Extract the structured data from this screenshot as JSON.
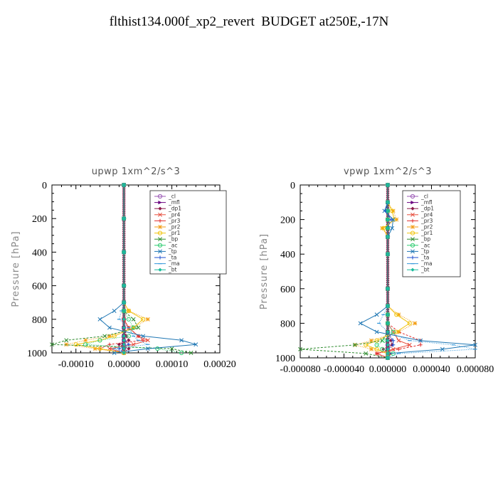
{
  "title": "flthist134.000f_xp2_revert  BUDGET at250E,-17N",
  "legend_labels": [
    "_cl",
    "_mfl",
    "_dp1",
    "_pr4",
    "_pr3",
    "_pr2",
    "_pr1",
    "_bp",
    "_ac",
    "_tp",
    "_ta",
    "_ma",
    "_bt"
  ],
  "colors": {
    "_cl": "#9b59b6",
    "_mfl": "#6a0080",
    "_dp1": "#8b1a4a",
    "_pr4": "#e74c3c",
    "_pr3": "#e03030",
    "_pr2": "#f39c12",
    "_pr1": "#f1c40f",
    "_bp": "#2e8b2e",
    "_ac": "#2ecc71",
    "_tp": "#1f77b4",
    "_ta": "#1f4fd0",
    "_ma": "#3498db",
    "_bt": "#1abc9c"
  },
  "chart_data": [
    {
      "type": "line",
      "title": "upwp   1xm^2/s^3",
      "ylabel": "Pressure  [hPa]",
      "xlim": [
        -0.00015,
        0.0002
      ],
      "ylim": [
        1000,
        0
      ],
      "xticks": [
        -0.0001,
        0.0,
        0.0001,
        0.0002
      ],
      "xtick_labels": [
        "-0.00010",
        "0.00000",
        "0.00010",
        "0.00020"
      ],
      "yticks": [
        0,
        200,
        400,
        600,
        800,
        1000
      ],
      "ytick_labels": [
        "0",
        "200",
        "400",
        "600",
        "800",
        "1000"
      ],
      "legend_position": "top-right",
      "pressure": [
        0,
        200,
        400,
        600,
        700,
        750,
        800,
        850,
        900,
        925,
        950,
        975,
        1000
      ],
      "series": [
        {
          "name": "_cl",
          "values": [
            0,
            0,
            0,
            0,
            0,
            0,
            0,
            0,
            0,
            0,
            0,
            0,
            0
          ]
        },
        {
          "name": "_mfl",
          "values": [
            0,
            0,
            0,
            0,
            0,
            0,
            0,
            0,
            0,
            0,
            0,
            0,
            0
          ]
        },
        {
          "name": "_dp1",
          "values": [
            0,
            0,
            0,
            0,
            0,
            0,
            0,
            0,
            5e-06,
            1e-05,
            -1e-05,
            1e-05,
            0
          ]
        },
        {
          "name": "_pr4",
          "values": [
            0,
            0,
            0,
            0,
            0,
            0,
            0,
            1e-05,
            3e-05,
            5e-05,
            2e-05,
            -3e-05,
            0
          ]
        },
        {
          "name": "_pr3",
          "values": [
            0,
            0,
            0,
            0,
            0,
            0,
            0,
            1e-05,
            3e-05,
            4e-05,
            -3e-05,
            -5e-05,
            0
          ]
        },
        {
          "name": "_pr2",
          "values": [
            0,
            0,
            0,
            0,
            0,
            1e-05,
            5e-05,
            2e-05,
            -3e-05,
            -8e-05,
            -0.00012,
            -6e-05,
            0
          ]
        },
        {
          "name": "_pr1",
          "values": [
            0,
            0,
            0,
            0,
            0,
            1e-05,
            4e-05,
            2e-05,
            -2e-05,
            -5e-05,
            -0.0001,
            -5e-05,
            0
          ]
        },
        {
          "name": "_bp",
          "values": [
            0,
            0,
            0,
            0,
            0,
            0,
            2e-05,
            3e-05,
            -4e-05,
            -0.00012,
            -0.00015,
            0.0001,
            0.00014
          ]
        },
        {
          "name": "_ac",
          "values": [
            0,
            0,
            0,
            0,
            0,
            0,
            1e-05,
            2e-05,
            1e-05,
            -5e-05,
            -8e-05,
            7e-05,
            0.00012
          ]
        },
        {
          "name": "_tp",
          "values": [
            0,
            0,
            0,
            0,
            0,
            -2e-05,
            -5e-05,
            -3e-05,
            4e-05,
            0.00012,
            0.00015,
            5e-05,
            -2e-05
          ]
        },
        {
          "name": "_ta",
          "values": [
            0,
            0,
            0,
            0,
            0,
            0,
            0,
            0,
            0,
            0,
            1e-05,
            -1e-05,
            0
          ]
        },
        {
          "name": "_ma",
          "values": [
            0,
            0,
            0,
            0,
            0,
            -5e-06,
            -1e-05,
            1e-05,
            2e-05,
            3e-05,
            5e-05,
            -2e-05,
            0
          ]
        },
        {
          "name": "_bt",
          "values": [
            0,
            0,
            0,
            0,
            0,
            0,
            0,
            0,
            0,
            0,
            0,
            0,
            0
          ]
        }
      ]
    },
    {
      "type": "line",
      "title": "vpwp   1xm^2/s^3",
      "ylabel": "Pressure  [hPa]",
      "xlim": [
        -8e-05,
        8e-05
      ],
      "ylim": [
        1000,
        0
      ],
      "xticks": [
        -8e-05,
        -4e-05,
        0.0,
        4e-05,
        8e-05
      ],
      "xtick_labels": [
        "-0.000080",
        "-0.000040",
        "0.000000",
        "0.000040",
        "0.000080"
      ],
      "yticks": [
        0,
        200,
        400,
        600,
        800,
        1000
      ],
      "ytick_labels": [
        "0",
        "200",
        "400",
        "600",
        "800",
        "1000"
      ],
      "legend_position": "top-right",
      "pressure": [
        0,
        100,
        150,
        200,
        250,
        300,
        400,
        600,
        700,
        750,
        800,
        850,
        900,
        925,
        950,
        975,
        1000
      ],
      "series": [
        {
          "name": "_cl",
          "values": [
            0,
            0,
            0,
            0,
            0,
            0,
            0,
            0,
            0,
            0,
            0,
            0,
            0,
            0,
            0,
            0,
            0
          ]
        },
        {
          "name": "_mfl",
          "values": [
            0,
            0,
            0,
            0,
            0,
            0,
            0,
            0,
            0,
            0,
            0,
            0,
            0,
            0,
            0,
            0,
            0
          ]
        },
        {
          "name": "_dp1",
          "values": [
            0,
            0,
            0,
            0,
            0,
            0,
            0,
            0,
            0,
            0,
            0,
            0,
            3e-06,
            4e-06,
            -4e-06,
            2e-06,
            0
          ]
        },
        {
          "name": "_pr4",
          "values": [
            0,
            0,
            0,
            0,
            0,
            0,
            0,
            0,
            0,
            0,
            0,
            5e-06,
            1e-05,
            2e-05,
            5e-06,
            -1e-05,
            0
          ]
        },
        {
          "name": "_pr3",
          "values": [
            0,
            0,
            0,
            0,
            0,
            0,
            0,
            0,
            0,
            0,
            0,
            1e-05,
            3e-05,
            3e-05,
            1e-05,
            -1e-05,
            0
          ]
        },
        {
          "name": "_pr2",
          "values": [
            0,
            0,
            5e-06,
            8e-06,
            -5e-06,
            0,
            0,
            0,
            0,
            1e-05,
            2.5e-05,
            1e-05,
            -1.5e-05,
            -3e-05,
            -1.5e-05,
            0,
            0
          ]
        },
        {
          "name": "_pr1",
          "values": [
            0,
            0,
            4e-06,
            6e-06,
            -4e-06,
            0,
            0,
            0,
            0,
            8e-06,
            2e-05,
            8e-06,
            -1e-05,
            -2e-05,
            -1e-05,
            0,
            0
          ]
        },
        {
          "name": "_bp",
          "values": [
            0,
            0,
            0,
            0,
            0,
            0,
            0,
            0,
            0,
            0,
            0,
            0,
            -5e-06,
            -3e-05,
            -8e-05,
            -2e-05,
            0
          ]
        },
        {
          "name": "_ac",
          "values": [
            0,
            0,
            0,
            0,
            0,
            0,
            0,
            0,
            0,
            0,
            0,
            5e-06,
            -3e-06,
            -1e-05,
            -5e-06,
            5e-06,
            0
          ]
        },
        {
          "name": "_tp",
          "values": [
            0,
            0,
            -3e-06,
            5e-06,
            4e-06,
            0,
            0,
            0,
            0,
            -1e-05,
            -2.5e-05,
            -1e-05,
            3e-05,
            8e-05,
            5e-05,
            0,
            0
          ]
        },
        {
          "name": "_ta",
          "values": [
            0,
            0,
            -2e-06,
            3e-06,
            0,
            0,
            0,
            0,
            0,
            0,
            0,
            0,
            5e-06,
            5e-06,
            0,
            0,
            0
          ]
        },
        {
          "name": "_ma",
          "values": [
            0,
            0,
            0,
            0,
            0,
            0,
            0,
            0,
            0,
            -4e-06,
            -8e-06,
            0,
            2e-05,
            6e-05,
            8e-05,
            1e-05,
            0
          ]
        },
        {
          "name": "_bt",
          "values": [
            0,
            0,
            0,
            0,
            0,
            0,
            0,
            0,
            0,
            0,
            0,
            0,
            0,
            0,
            0,
            0,
            0
          ]
        }
      ]
    }
  ]
}
